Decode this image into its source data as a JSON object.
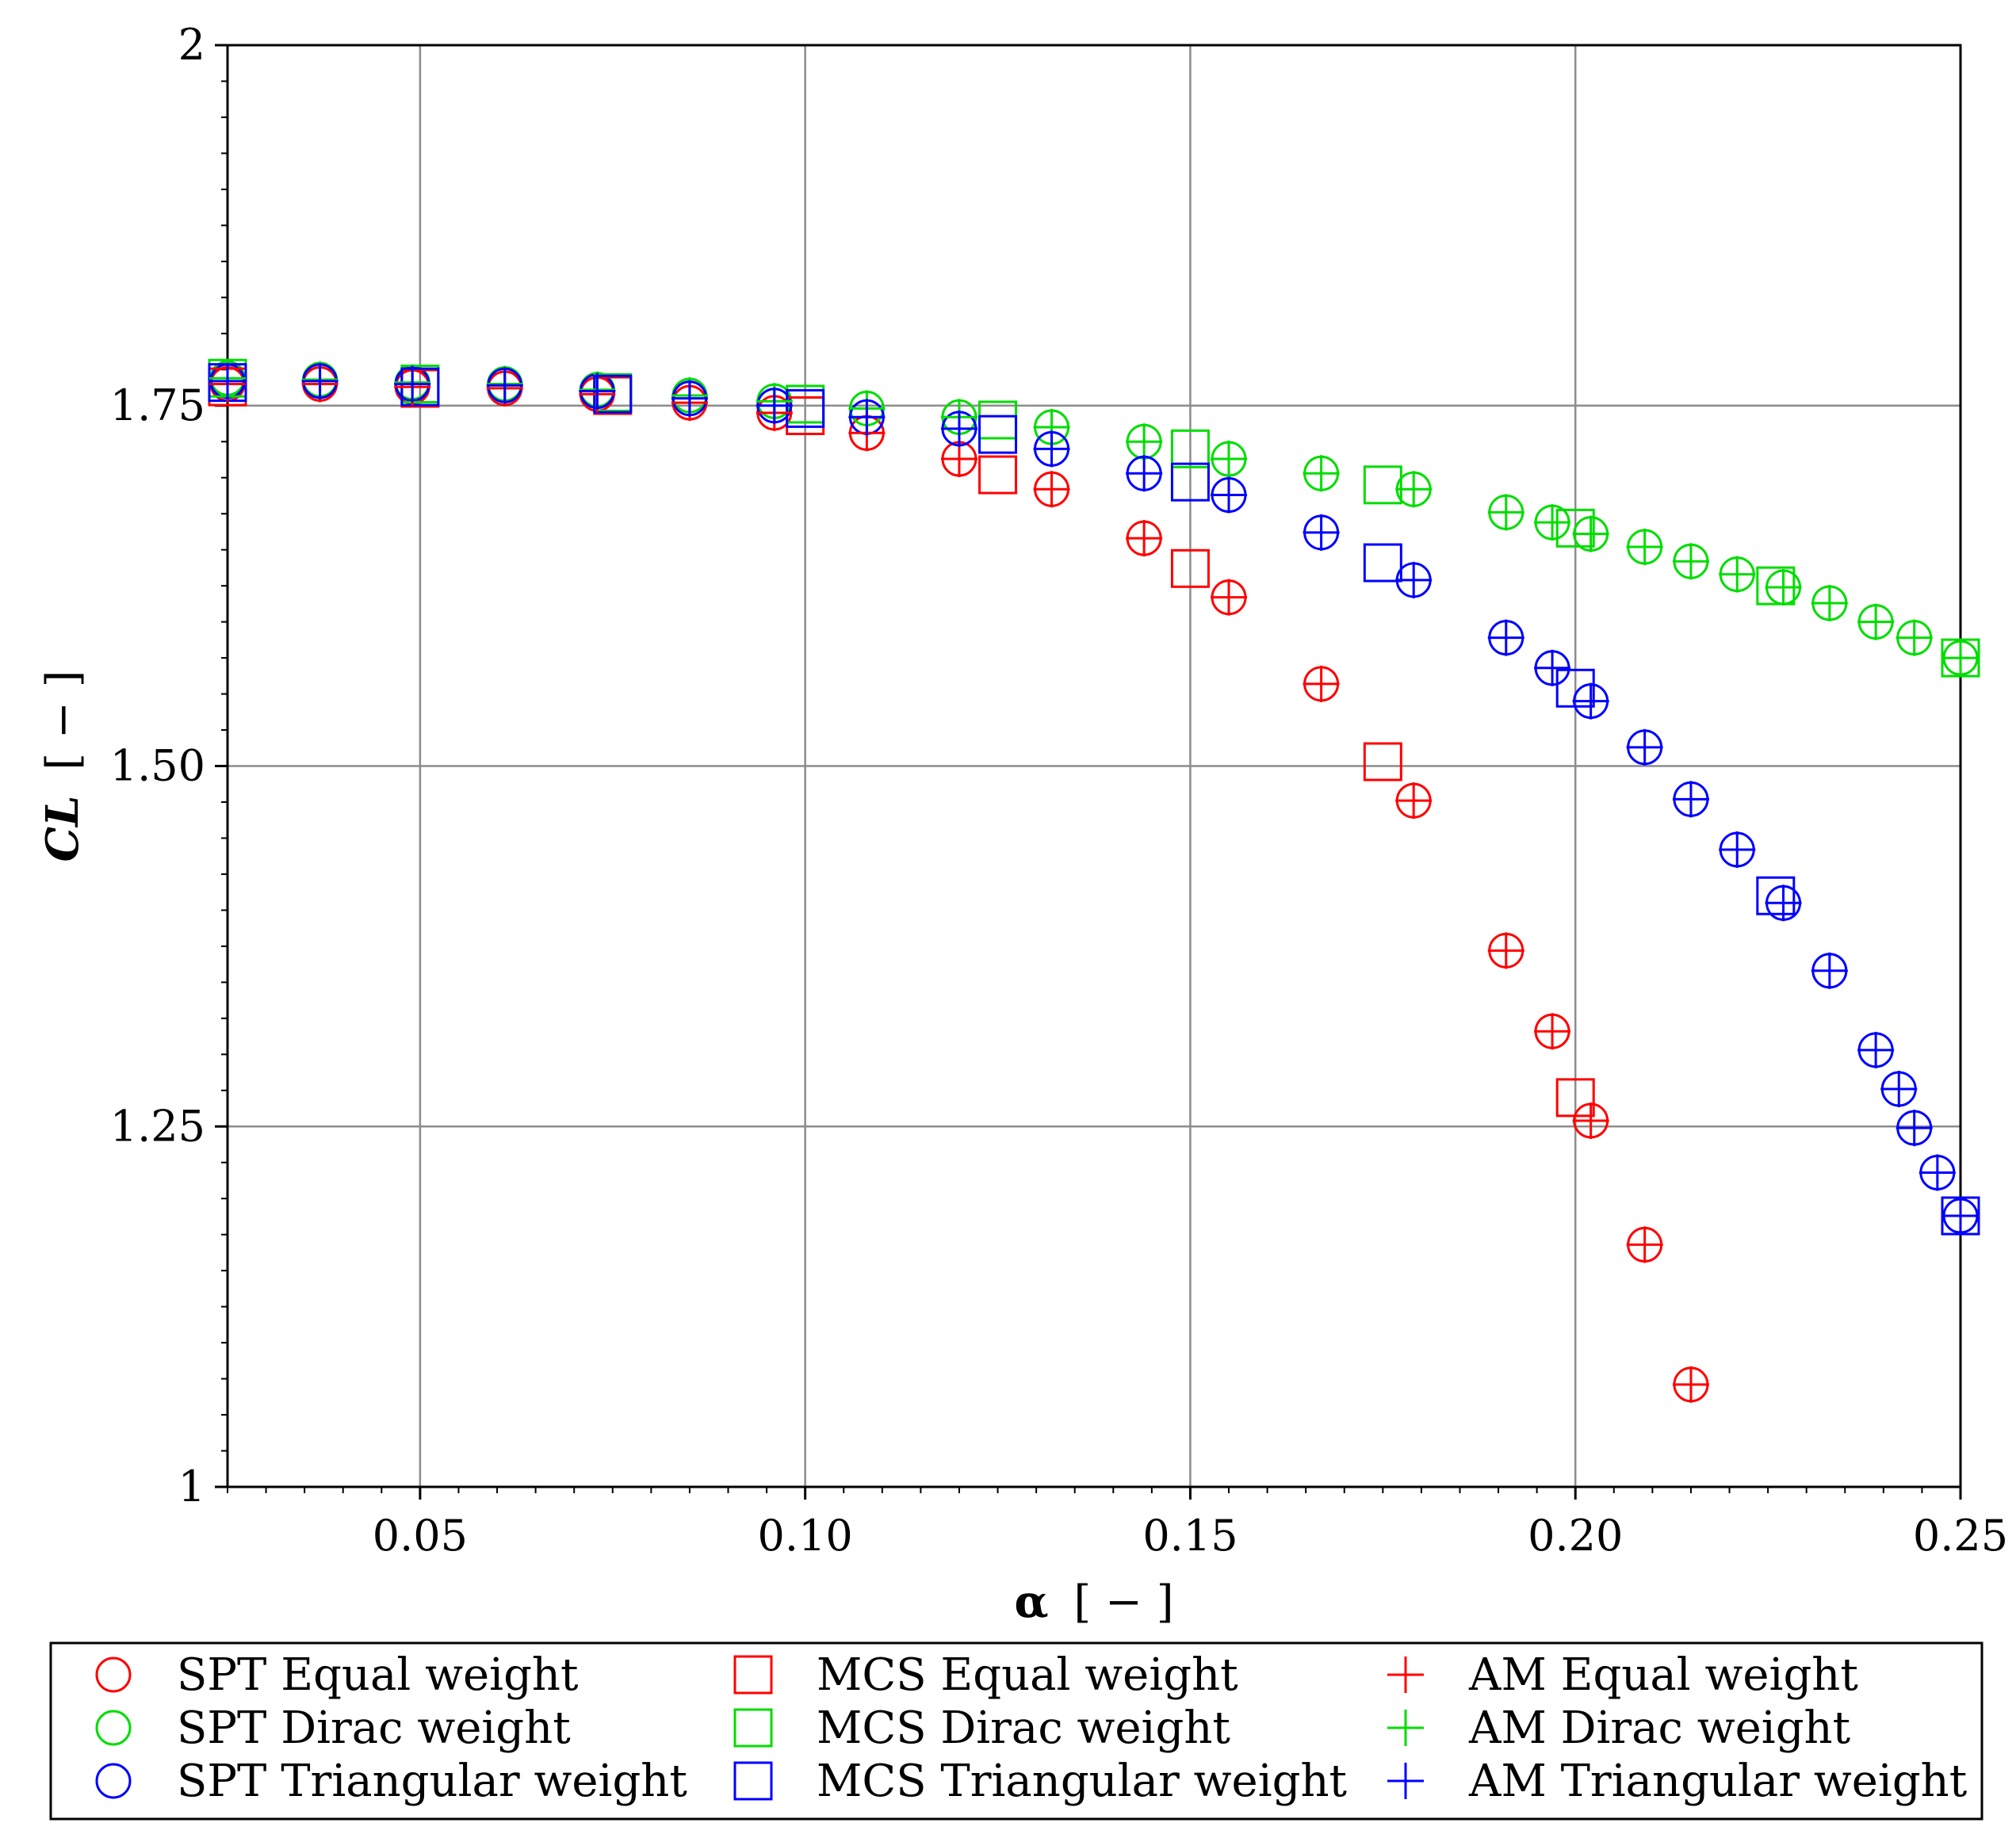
{
  "chart_data": {
    "type": "scatter",
    "title": "",
    "xlabel": {
      "symbol": "α",
      "unit": "[ − ]"
    },
    "ylabel": {
      "symbol": "CL",
      "unit": "[ − ]"
    },
    "xlim": [
      0.025,
      0.25
    ],
    "ylim": [
      1,
      2
    ],
    "grid": true,
    "x_ticks": [
      {
        "value": 0.05,
        "label": "0.05"
      },
      {
        "value": 0.1,
        "label": "0.10"
      },
      {
        "value": 0.15,
        "label": "0.15"
      },
      {
        "value": 0.2,
        "label": "0.20"
      },
      {
        "value": 0.25,
        "label": "0.25"
      }
    ],
    "y_ticks": [
      {
        "value": 1,
        "label": "1"
      },
      {
        "value": 1.25,
        "label": "1.25"
      },
      {
        "value": 1.5,
        "label": "1.50"
      },
      {
        "value": 1.75,
        "label": "1.75"
      },
      {
        "value": 2,
        "label": "2"
      }
    ],
    "legend_position": "bottom",
    "series": [
      {
        "name": "SPT Equal weight",
        "marker": "circle",
        "color": "#ff0000",
        "x": [
          0.025,
          0.037,
          0.049,
          0.061,
          0.073,
          0.085,
          0.096,
          0.108,
          0.12,
          0.132,
          0.144,
          0.155,
          0.167,
          0.179,
          0.191,
          0.197,
          0.202,
          0.209,
          0.215
        ],
        "y": [
          1.765,
          1.765,
          1.763,
          1.762,
          1.758,
          1.752,
          1.745,
          1.731,
          1.713,
          1.692,
          1.658,
          1.617,
          1.557,
          1.476,
          1.372,
          1.316,
          1.254,
          1.168,
          1.071
        ]
      },
      {
        "name": "SPT Dirac weight",
        "marker": "circle",
        "color": "#00dd00",
        "x": [
          0.025,
          0.037,
          0.049,
          0.061,
          0.073,
          0.085,
          0.096,
          0.108,
          0.12,
          0.132,
          0.144,
          0.155,
          0.167,
          0.179,
          0.191,
          0.197,
          0.202,
          0.209,
          0.215,
          0.221,
          0.227,
          0.233,
          0.239,
          0.244,
          0.25
        ],
        "y": [
          1.769,
          1.768,
          1.766,
          1.765,
          1.761,
          1.757,
          1.753,
          1.748,
          1.742,
          1.735,
          1.725,
          1.713,
          1.703,
          1.692,
          1.676,
          1.669,
          1.661,
          1.652,
          1.642,
          1.633,
          1.624,
          1.613,
          1.6,
          1.589,
          1.575
        ]
      },
      {
        "name": "SPT Triangular weight",
        "marker": "circle",
        "color": "#0000ff",
        "x": [
          0.025,
          0.037,
          0.049,
          0.061,
          0.073,
          0.085,
          0.096,
          0.108,
          0.12,
          0.132,
          0.144,
          0.155,
          0.167,
          0.179,
          0.191,
          0.197,
          0.202,
          0.209,
          0.215,
          0.221,
          0.227,
          0.233,
          0.239,
          0.242,
          0.244,
          0.247,
          0.25
        ],
        "y": [
          1.767,
          1.767,
          1.765,
          1.764,
          1.76,
          1.755,
          1.75,
          1.742,
          1.734,
          1.72,
          1.703,
          1.688,
          1.662,
          1.629,
          1.589,
          1.568,
          1.545,
          1.513,
          1.477,
          1.442,
          1.405,
          1.358,
          1.303,
          1.276,
          1.249,
          1.218,
          1.188
        ]
      },
      {
        "name": "MCS Equal weight",
        "marker": "square",
        "color": "#ff0000",
        "x": [
          0.025,
          0.05,
          0.075,
          0.1,
          0.125,
          0.15,
          0.175,
          0.2
        ],
        "y": [
          1.763,
          1.762,
          1.757,
          1.743,
          1.702,
          1.637,
          1.503,
          1.27
        ]
      },
      {
        "name": "MCS Dirac weight",
        "marker": "square",
        "color": "#00dd00",
        "x": [
          0.025,
          0.05,
          0.075,
          0.1,
          0.125,
          0.15,
          0.175,
          0.2,
          0.226,
          0.25
        ],
        "y": [
          1.769,
          1.765,
          1.759,
          1.751,
          1.74,
          1.72,
          1.695,
          1.665,
          1.625,
          1.575
        ]
      },
      {
        "name": "MCS Triangular weight",
        "marker": "square",
        "color": "#0000ff",
        "x": [
          0.025,
          0.05,
          0.075,
          0.1,
          0.125,
          0.15,
          0.175,
          0.2,
          0.226,
          0.25
        ],
        "y": [
          1.766,
          1.763,
          1.758,
          1.748,
          1.73,
          1.697,
          1.641,
          1.554,
          1.41,
          1.188
        ]
      },
      {
        "name": "AM Equal weight",
        "marker": "plus",
        "color": "#ff0000",
        "x": [
          0.025,
          0.037,
          0.049,
          0.061,
          0.073,
          0.085,
          0.096,
          0.108,
          0.12,
          0.132,
          0.144,
          0.155,
          0.167,
          0.179,
          0.191,
          0.197,
          0.202,
          0.209,
          0.215
        ],
        "y": [
          1.765,
          1.765,
          1.763,
          1.762,
          1.758,
          1.752,
          1.745,
          1.731,
          1.713,
          1.692,
          1.658,
          1.617,
          1.557,
          1.476,
          1.372,
          1.316,
          1.254,
          1.168,
          1.071
        ]
      },
      {
        "name": "AM Dirac weight",
        "marker": "plus",
        "color": "#00dd00",
        "x": [
          0.025,
          0.037,
          0.049,
          0.061,
          0.073,
          0.085,
          0.096,
          0.108,
          0.12,
          0.132,
          0.144,
          0.155,
          0.167,
          0.179,
          0.191,
          0.197,
          0.202,
          0.209,
          0.215,
          0.221,
          0.227,
          0.233,
          0.239,
          0.244,
          0.25
        ],
        "y": [
          1.769,
          1.768,
          1.766,
          1.765,
          1.761,
          1.757,
          1.753,
          1.748,
          1.742,
          1.735,
          1.725,
          1.713,
          1.703,
          1.692,
          1.676,
          1.669,
          1.661,
          1.652,
          1.642,
          1.633,
          1.624,
          1.613,
          1.6,
          1.589,
          1.575
        ]
      },
      {
        "name": "AM Triangular weight",
        "marker": "plus",
        "color": "#0000ff",
        "x": [
          0.025,
          0.037,
          0.049,
          0.061,
          0.073,
          0.085,
          0.096,
          0.108,
          0.12,
          0.132,
          0.144,
          0.155,
          0.167,
          0.179,
          0.191,
          0.197,
          0.202,
          0.209,
          0.215,
          0.221,
          0.227,
          0.233,
          0.239,
          0.242,
          0.244,
          0.247,
          0.25
        ],
        "y": [
          1.767,
          1.767,
          1.765,
          1.764,
          1.76,
          1.755,
          1.75,
          1.742,
          1.734,
          1.72,
          1.703,
          1.688,
          1.662,
          1.629,
          1.589,
          1.568,
          1.545,
          1.513,
          1.477,
          1.442,
          1.405,
          1.358,
          1.303,
          1.276,
          1.249,
          1.218,
          1.188
        ]
      }
    ]
  }
}
